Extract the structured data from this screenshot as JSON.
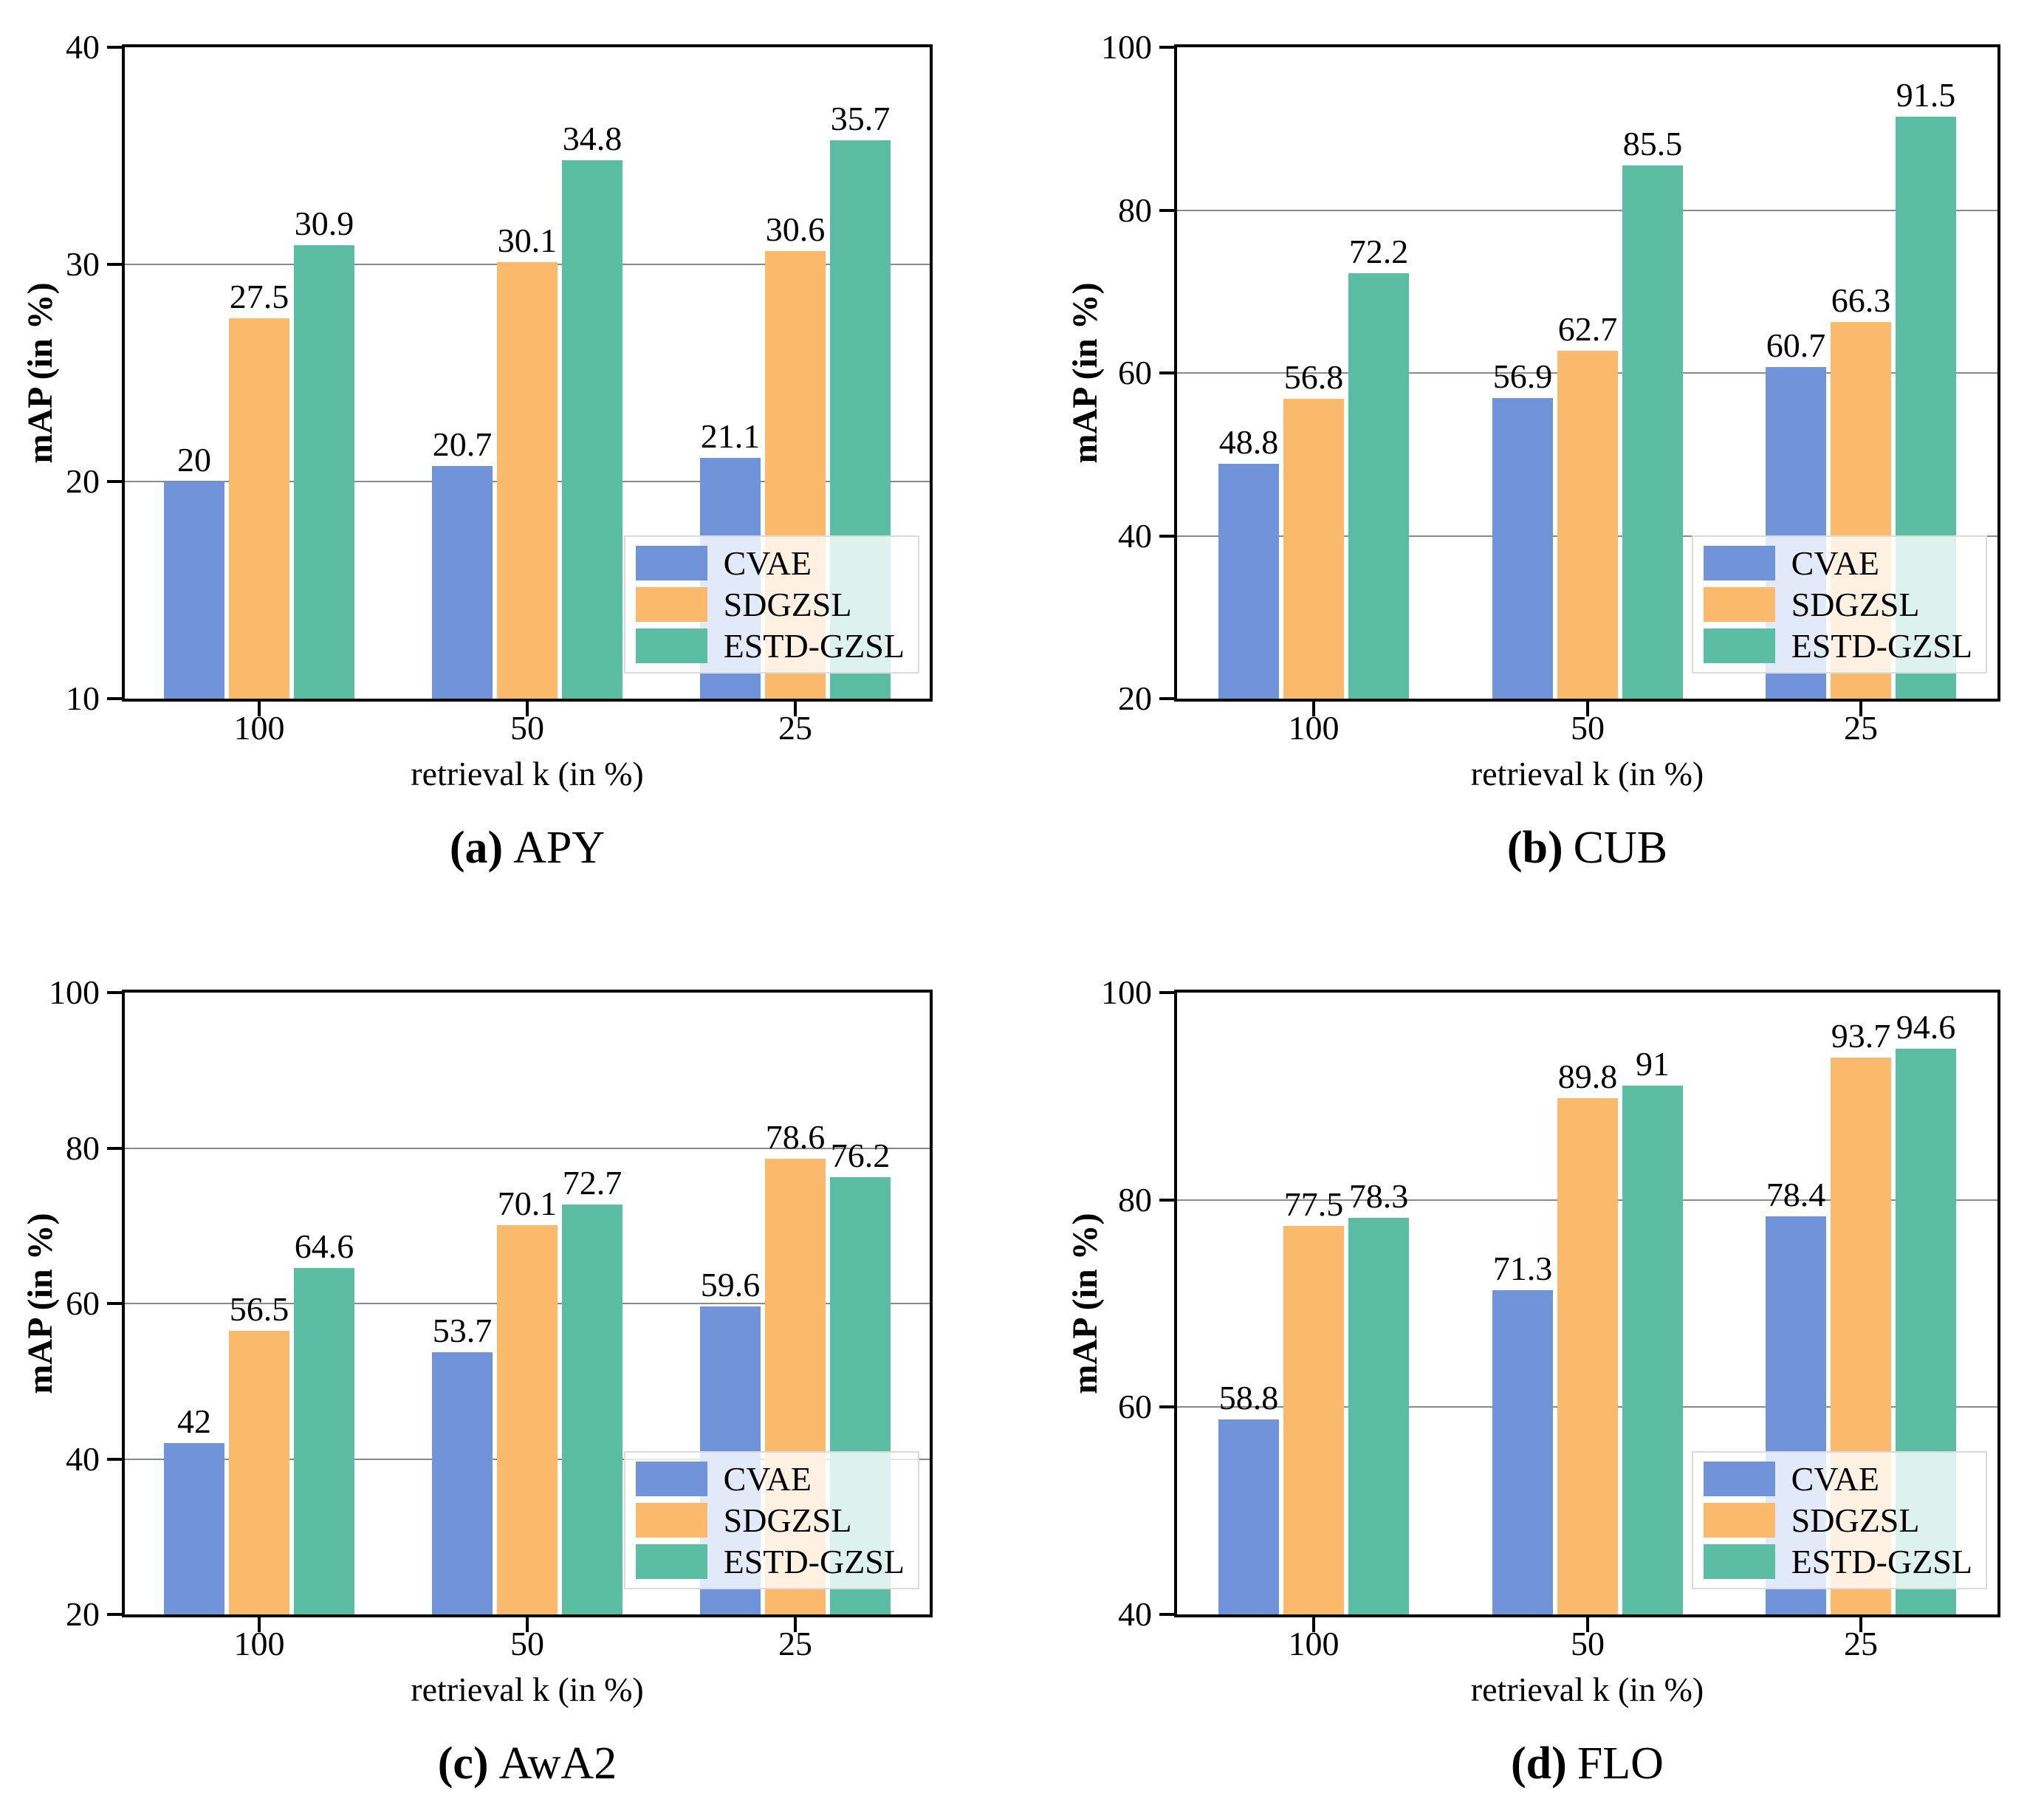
{
  "legend": {
    "entries": [
      "CVAE",
      "SDGZSL",
      "ESTD-GZSL"
    ],
    "position": "lower right"
  },
  "colors": {
    "cvae": "#7093DA",
    "sdgzsl": "#FBBA6B",
    "estd_gzsl": "#5BBEA3",
    "grid": "#8A8A8A",
    "axis": "#000000",
    "legend_border": "#DCDCDC"
  },
  "chart_data": [
    {
      "type": "bar",
      "caption_label": "(a)",
      "caption_text": "APY",
      "xlabel": "retrieval k (in %)",
      "ylabel": "mAP (in %)",
      "categories": [
        "100",
        "50",
        "25"
      ],
      "series": [
        {
          "name": "CVAE",
          "color": "#7093DA",
          "values": [
            20,
            20.7,
            21.1
          ]
        },
        {
          "name": "SDGZSL",
          "color": "#FBBA6B",
          "values": [
            27.5,
            30.1,
            30.6
          ]
        },
        {
          "name": "ESTD-GZSL",
          "color": "#5BBEA3",
          "values": [
            30.9,
            34.8,
            35.7
          ]
        }
      ],
      "ylim": [
        10,
        40
      ],
      "yticks": [
        10,
        20,
        30,
        40
      ],
      "grid": true,
      "legend_position": "lower right"
    },
    {
      "type": "bar",
      "caption_label": "(b)",
      "caption_text": "CUB",
      "xlabel": "retrieval k (in %)",
      "ylabel": "mAP (in %)",
      "categories": [
        "100",
        "50",
        "25"
      ],
      "series": [
        {
          "name": "CVAE",
          "color": "#7093DA",
          "values": [
            48.8,
            56.9,
            60.7
          ]
        },
        {
          "name": "SDGZSL",
          "color": "#FBBA6B",
          "values": [
            56.8,
            62.7,
            66.3
          ]
        },
        {
          "name": "ESTD-GZSL",
          "color": "#5BBEA3",
          "values": [
            72.2,
            85.5,
            91.5
          ]
        }
      ],
      "ylim": [
        20,
        100
      ],
      "yticks": [
        20,
        40,
        60,
        80,
        100
      ],
      "grid": true,
      "legend_position": "lower right"
    },
    {
      "type": "bar",
      "caption_label": "(c)",
      "caption_text": "AwA2",
      "xlabel": "retrieval k (in %)",
      "ylabel": "mAP (in %)",
      "categories": [
        "100",
        "50",
        "25"
      ],
      "series": [
        {
          "name": "CVAE",
          "color": "#7093DA",
          "values": [
            42,
            53.7,
            59.6
          ]
        },
        {
          "name": "SDGZSL",
          "color": "#FBBA6B",
          "values": [
            56.5,
            70.1,
            78.6
          ]
        },
        {
          "name": "ESTD-GZSL",
          "color": "#5BBEA3",
          "values": [
            64.6,
            72.7,
            76.2
          ]
        }
      ],
      "ylim": [
        20,
        100
      ],
      "yticks": [
        20,
        40,
        60,
        80,
        100
      ],
      "grid": true,
      "legend_position": "lower right"
    },
    {
      "type": "bar",
      "caption_label": "(d)",
      "caption_text": "FLO",
      "xlabel": "retrieval k (in %)",
      "ylabel": "mAP (in %)",
      "categories": [
        "100",
        "50",
        "25"
      ],
      "series": [
        {
          "name": "CVAE",
          "color": "#7093DA",
          "values": [
            58.8,
            71.3,
            78.4
          ]
        },
        {
          "name": "SDGZSL",
          "color": "#FBBA6B",
          "values": [
            77.5,
            89.8,
            93.7
          ]
        },
        {
          "name": "ESTD-GZSL",
          "color": "#5BBEA3",
          "values": [
            78.3,
            91,
            94.6
          ]
        }
      ],
      "ylim": [
        40,
        100
      ],
      "yticks": [
        40,
        60,
        80,
        100
      ],
      "grid": true,
      "legend_position": "lower right"
    }
  ]
}
